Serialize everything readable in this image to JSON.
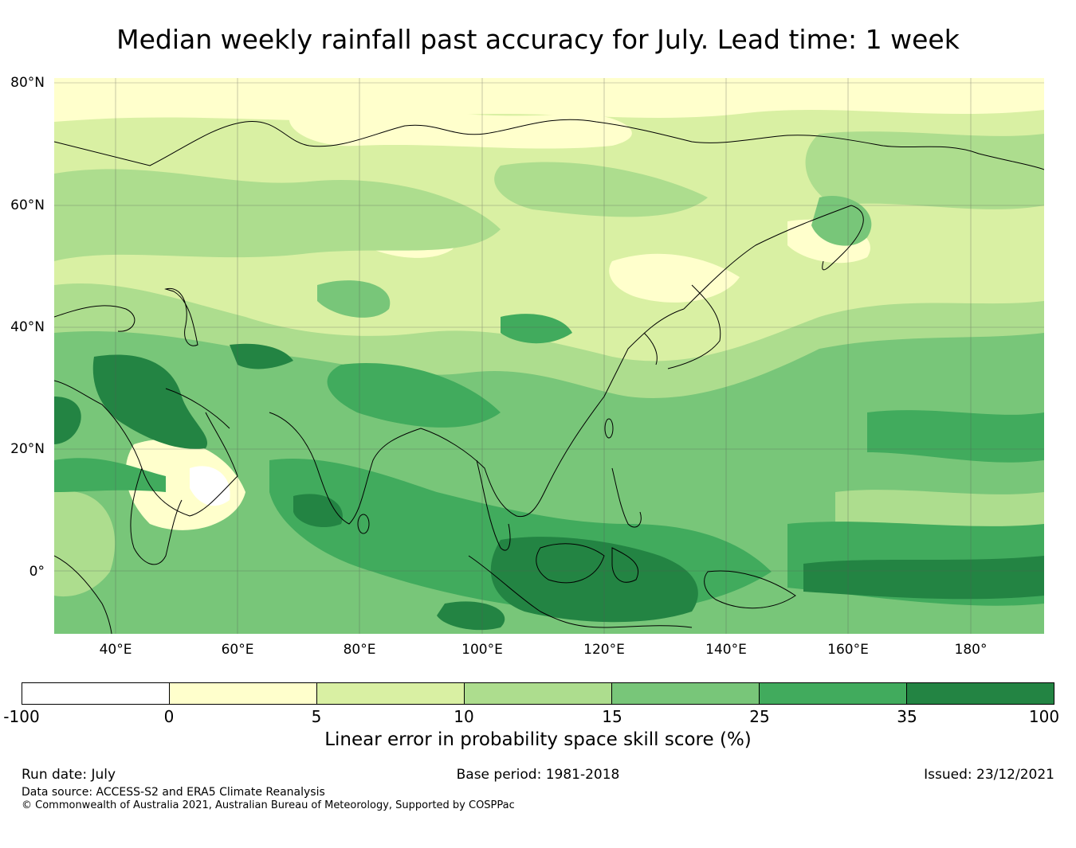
{
  "title": "Median weekly rainfall past accuracy for July. Lead time: 1 week",
  "map": {
    "region": "Asia",
    "lat_labels": [
      "80°N",
      "60°N",
      "40°N",
      "20°N",
      "0°"
    ],
    "lon_labels": [
      "40°E",
      "60°E",
      "80°E",
      "100°E",
      "120°E",
      "140°E",
      "160°E",
      "180°"
    ]
  },
  "colorbar": {
    "ticks": [
      "-100",
      "0",
      "5",
      "10",
      "15",
      "25",
      "35",
      "100"
    ],
    "colors": [
      "#ffffff",
      "#ffffcc",
      "#d9f0a3",
      "#addd8e",
      "#78c679",
      "#41ab5d",
      "#238443"
    ],
    "label": "Linear error in probability space skill score (%)"
  },
  "footer": {
    "run_date": "Run date: July",
    "base_period": "Base period: 1981-2018",
    "issued": "Issued: 23/12/2021",
    "data_source": "Data source: ACCESS-S2 and ERA5 Climate Reanalysis",
    "copyright": "© Commonwealth of Australia 2021, Australian Bureau of Meteorology, Supported by COSPPac"
  }
}
